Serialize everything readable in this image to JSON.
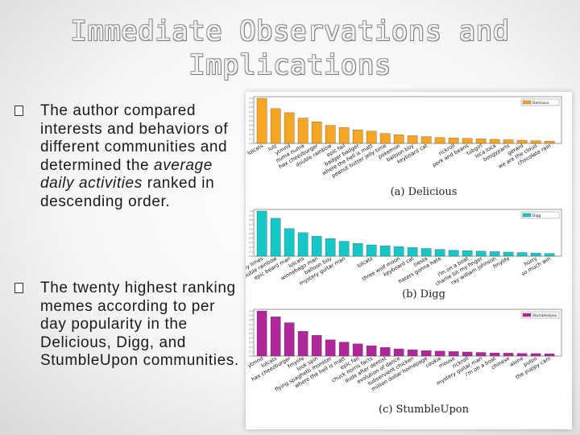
{
  "title": "Immediate Observations and Implications",
  "bullets": [
    {
      "before": "The author compared interests and behaviors of different communities and determined the ",
      "em": "average daily activities",
      "after": " ranked in descending order."
    },
    {
      "before": "The twenty highest ranking memes according to per day popularity in the Delicious, Digg, and StumbleUpon communities.",
      "em": "",
      "after": ""
    }
  ],
  "chart_data": [
    {
      "type": "bar",
      "title": "(a)  Delicious",
      "legend": "Delicious",
      "color": "#f5a623",
      "categories": [
        "lolcats",
        "lulz",
        "ytmnd",
        "numa numa",
        "hax cheezburger",
        "double rainbow",
        "epic fail",
        "badger badger",
        "where the hell is matt",
        "peanut butter jelly time",
        "pokemon",
        "balloon boy",
        "keyboard cat",
        "",
        "rickroll",
        "pork and beans",
        "tubgirl",
        "loca loca",
        "boogyparts",
        "gerard",
        "we are the cloud",
        "chocolate rain"
      ],
      "values": [
        1.0,
        0.77,
        0.68,
        0.56,
        0.48,
        0.4,
        0.35,
        0.3,
        0.27,
        0.22,
        0.19,
        0.17,
        0.15,
        0.13,
        0.12,
        0.11,
        0.1,
        0.09,
        0.08,
        0.07,
        0.06,
        0.05
      ],
      "yticks": [
        "0.0",
        "0.1",
        "0.2",
        "0.3",
        "0.4",
        "0.5",
        "0.6",
        "0.7",
        "0.8",
        "0.9",
        "1.0"
      ],
      "ylim": [
        0,
        1.0
      ]
    },
    {
      "type": "bar",
      "title": "(b)  Digg",
      "legend": "Digg",
      "color": "#16c7c7",
      "categories": [
        "too many limes",
        "double rainbow",
        "epic beard man",
        "lolcats",
        "winnebago man",
        "balloon boy",
        "mystery guitar man",
        "",
        "lolcatz",
        "",
        "three wolf moon",
        "keyboard cat",
        "tiesta",
        "haters gonna hate",
        "",
        "i'm on a boat",
        "charlie bit my finger",
        "ray william johnson",
        "fmylife",
        "",
        "hurry",
        "so much win"
      ],
      "values": [
        1.0,
        0.84,
        0.61,
        0.52,
        0.44,
        0.39,
        0.33,
        0.28,
        0.25,
        0.23,
        0.21,
        0.19,
        0.17,
        0.15,
        0.13,
        0.12,
        0.11,
        0.1,
        0.09,
        0.08,
        0.07,
        0.06
      ],
      "yticks": [
        "0.0",
        "0.1",
        "0.2",
        "0.3",
        "0.4",
        "0.5",
        "0.6",
        "0.7",
        "0.8",
        "0.9",
        "1.0"
      ],
      "ylim": [
        0,
        1.0
      ]
    },
    {
      "type": "bar",
      "title": "(c)  StumbleUpon",
      "legend": "StumbleUpon",
      "color": "#b0279a",
      "categories": [
        "ytmnd",
        "lolcats",
        "hax cheezburger",
        "fmylife",
        "look spin",
        "flying spaghetti monster",
        "where the hell is matt",
        "epic fail",
        "chuck norris facts",
        "dude after dentist",
        "evolution of dance",
        "subservient chicken",
        "million dollar homepage",
        "cookie",
        "mouse",
        "rickroll",
        "mystery guitar man",
        "i'm on a boat",
        "chinese",
        "alone",
        "pulpo",
        "the puppy cam"
      ],
      "values": [
        1.0,
        0.87,
        0.74,
        0.55,
        0.46,
        0.36,
        0.31,
        0.27,
        0.23,
        0.19,
        0.16,
        0.14,
        0.12,
        0.11,
        0.1,
        0.09,
        0.08,
        0.07,
        0.065,
        0.06,
        0.055,
        0.05
      ],
      "yticks": [
        "0.0",
        "0.1",
        "0.2",
        "0.3",
        "0.4",
        "0.5",
        "0.6",
        "0.7",
        "0.8",
        "0.9",
        "1.0"
      ],
      "ylim": [
        0,
        1.0
      ]
    }
  ]
}
